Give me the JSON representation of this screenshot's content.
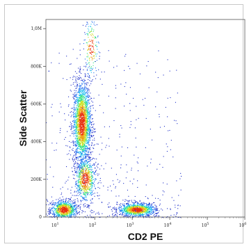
{
  "chart_data": {
    "type": "scatter",
    "title": "",
    "xlabel": "CD2 PE",
    "ylabel": "Side Scatter",
    "x_scale": "log",
    "y_scale": "linear",
    "xlim": [
      5,
      1000000
    ],
    "ylim": [
      0,
      1048576
    ],
    "x_ticks": [
      {
        "value": 10,
        "base": "10",
        "exp": "1"
      },
      {
        "value": 100,
        "base": "10",
        "exp": "2"
      },
      {
        "value": 1000,
        "base": "10",
        "exp": "3"
      },
      {
        "value": 10000,
        "base": "10",
        "exp": "4"
      },
      {
        "value": 100000,
        "base": "10",
        "exp": "5"
      },
      {
        "value": 1000000,
        "base": "10",
        "exp": "6"
      }
    ],
    "y_ticks": [
      {
        "value": 0,
        "label": "0"
      },
      {
        "value": 200000,
        "label": "200K"
      },
      {
        "value": 400000,
        "label": "400K"
      },
      {
        "value": 600000,
        "label": "600K"
      },
      {
        "value": 800000,
        "label": "800K"
      },
      {
        "value": 1000000,
        "label": "1,0M"
      }
    ],
    "grid": false,
    "density_colormap": [
      "#1a2cc8",
      "#1e6ef0",
      "#20c0f0",
      "#30e080",
      "#c8e020",
      "#f0a010",
      "#e83010"
    ],
    "populations": [
      {
        "x_center": 15,
        "y_center": 40000,
        "x_spread_decades": 0.18,
        "y_spread": 25000,
        "count": 900
      },
      {
        "x_center": 45,
        "y_center": 500000,
        "x_spread_decades": 0.12,
        "y_spread": 110000,
        "count": 2200
      },
      {
        "x_center": 55,
        "y_center": 200000,
        "x_spread_decades": 0.14,
        "y_spread": 60000,
        "count": 700
      },
      {
        "x_center": 1300,
        "y_center": 40000,
        "x_spread_decades": 0.25,
        "y_spread": 18000,
        "count": 1100
      },
      {
        "x_center": 80,
        "y_center": 900000,
        "x_spread_decades": 0.1,
        "y_spread": 80000,
        "count": 180
      }
    ]
  }
}
